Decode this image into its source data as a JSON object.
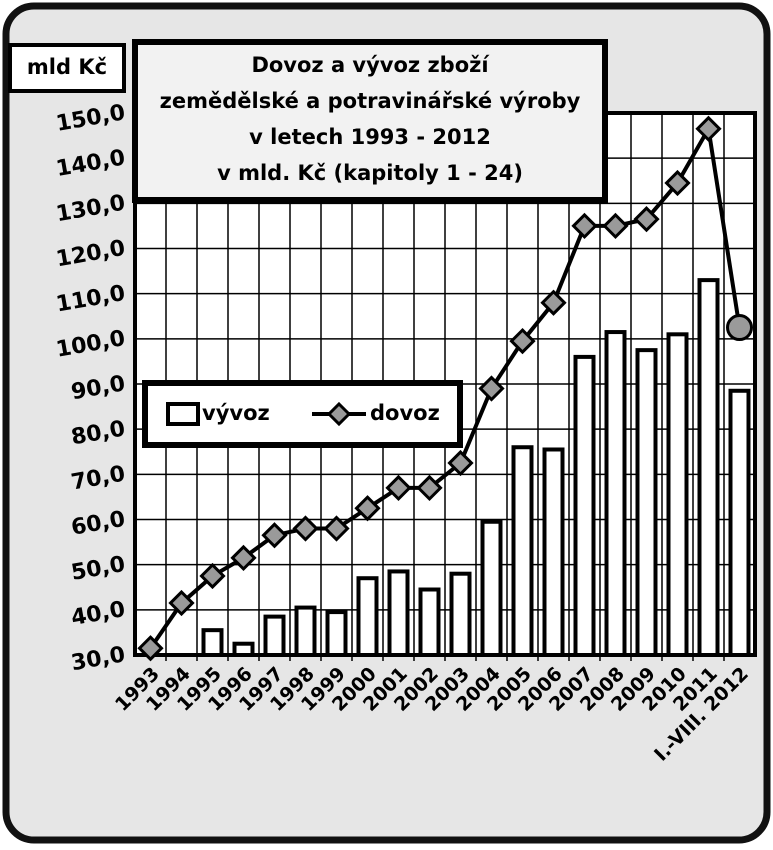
{
  "chart_data": {
    "type": "bar-line",
    "title": [
      "Dovoz a vývoz zboží",
      "zemědělské a potravinářské výroby",
      "v letech 1993 - 2012",
      "v mld. Kč (kapitoly 1 - 24)"
    ],
    "y_label": "mld Kč",
    "categories": [
      "1993",
      "1994",
      "1995",
      "1996",
      "1997",
      "1998",
      "1999",
      "2000",
      "2001",
      "2002",
      "2003",
      "2004",
      "2005",
      "2006",
      "2007",
      "2008",
      "2009",
      "2010",
      "2011",
      "I.-VIII. 2012"
    ],
    "series": [
      {
        "name": "vývoz",
        "type": "bar",
        "color": "#ffffff",
        "values": [
          25,
          29,
          35.5,
          32.5,
          38.5,
          40.5,
          39.5,
          47,
          48.5,
          44.5,
          48,
          59.5,
          76,
          75.5,
          96,
          101.5,
          97.5,
          101,
          113,
          88.5
        ]
      },
      {
        "name": "dovoz",
        "type": "line",
        "color": "#000000",
        "marker_color": "#9a9a9a",
        "values": [
          31.5,
          41.5,
          47.5,
          51.5,
          56.5,
          58,
          58,
          62.5,
          67,
          67,
          72.5,
          89,
          99.5,
          108,
          125,
          125,
          126.5,
          134.5,
          146.5,
          102.5
        ]
      }
    ],
    "ylim": [
      30,
      150
    ],
    "yticks": [
      {
        "value": 30,
        "label": "30,0"
      },
      {
        "value": 40,
        "label": "40,0"
      },
      {
        "value": 50,
        "label": "50,0"
      },
      {
        "value": 60,
        "label": "60,0"
      },
      {
        "value": 70,
        "label": "70,0"
      },
      {
        "value": 80,
        "label": "80,0"
      },
      {
        "value": 90,
        "label": "90,0"
      },
      {
        "value": 100,
        "label": "100,0"
      },
      {
        "value": 110,
        "label": "110,0"
      },
      {
        "value": 120,
        "label": "120,0"
      },
      {
        "value": 130,
        "label": "130,0"
      },
      {
        "value": 140,
        "label": "140,0"
      },
      {
        "value": 150,
        "label": "150,0"
      }
    ],
    "grid": true
  }
}
